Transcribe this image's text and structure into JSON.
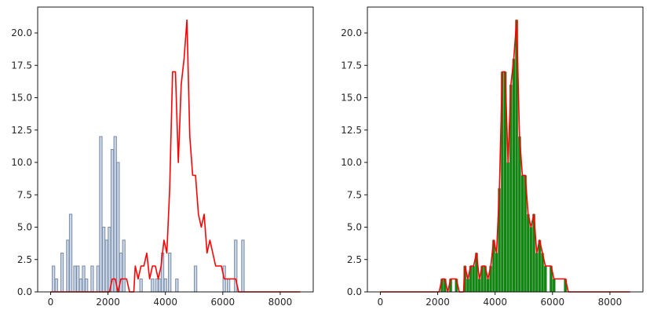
{
  "chart_data": [
    {
      "type": "bar",
      "panel": "left",
      "title": "",
      "xlabel": "",
      "ylabel": "",
      "xlim": [
        -450,
        9150
      ],
      "ylim": [
        0,
        22
      ],
      "grid": false,
      "xticks": [
        0,
        2000,
        4000,
        6000,
        8000
      ],
      "yticks": [
        0,
        2.5,
        5,
        7.5,
        10,
        12.5,
        15,
        17.5,
        20
      ],
      "xtick_labels": [
        "0",
        "2000",
        "4000",
        "6000",
        "8000"
      ],
      "ytick_labels": [
        "0.0",
        "2.5",
        "5.0",
        "7.5",
        "10.0",
        "12.5",
        "15.0",
        "17.5",
        "20.0"
      ],
      "bar_style": {
        "fill": "#c9d6e8",
        "edge": "#7b8ca4"
      },
      "line_style": {
        "color": "#ff0000"
      },
      "bars": [
        {
          "x": 100,
          "value": 2
        },
        {
          "x": 200,
          "value": 1
        },
        {
          "x": 400,
          "value": 3
        },
        {
          "x": 600,
          "value": 4
        },
        {
          "x": 700,
          "value": 6
        },
        {
          "x": 850,
          "value": 2
        },
        {
          "x": 950,
          "value": 2
        },
        {
          "x": 1050,
          "value": 1
        },
        {
          "x": 1150,
          "value": 2
        },
        {
          "x": 1250,
          "value": 1
        },
        {
          "x": 1450,
          "value": 2
        },
        {
          "x": 1650,
          "value": 2
        },
        {
          "x": 1750,
          "value": 12
        },
        {
          "x": 1850,
          "value": 5
        },
        {
          "x": 1950,
          "value": 4
        },
        {
          "x": 2050,
          "value": 5
        },
        {
          "x": 2150,
          "value": 11
        },
        {
          "x": 2250,
          "value": 12
        },
        {
          "x": 2350,
          "value": 10
        },
        {
          "x": 2450,
          "value": 3
        },
        {
          "x": 2550,
          "value": 4
        },
        {
          "x": 3150,
          "value": 1
        },
        {
          "x": 3550,
          "value": 1
        },
        {
          "x": 3700,
          "value": 1
        },
        {
          "x": 3800,
          "value": 1
        },
        {
          "x": 3900,
          "value": 3
        },
        {
          "x": 4000,
          "value": 1
        },
        {
          "x": 4150,
          "value": 3
        },
        {
          "x": 4400,
          "value": 1
        },
        {
          "x": 5050,
          "value": 2
        },
        {
          "x": 6050,
          "value": 2
        },
        {
          "x": 6200,
          "value": 1
        },
        {
          "x": 6450,
          "value": 4
        },
        {
          "x": 6700,
          "value": 4
        }
      ],
      "line": [
        {
          "x": 0,
          "y": 0
        },
        {
          "x": 2050,
          "y": 0
        },
        {
          "x": 2150,
          "y": 1
        },
        {
          "x": 2250,
          "y": 1
        },
        {
          "x": 2350,
          "y": 0
        },
        {
          "x": 2450,
          "y": 1
        },
        {
          "x": 2650,
          "y": 1
        },
        {
          "x": 2750,
          "y": 0
        },
        {
          "x": 2900,
          "y": 0
        },
        {
          "x": 2950,
          "y": 2
        },
        {
          "x": 3050,
          "y": 1
        },
        {
          "x": 3150,
          "y": 2
        },
        {
          "x": 3250,
          "y": 2
        },
        {
          "x": 3350,
          "y": 3
        },
        {
          "x": 3450,
          "y": 1
        },
        {
          "x": 3550,
          "y": 2
        },
        {
          "x": 3650,
          "y": 2
        },
        {
          "x": 3750,
          "y": 1
        },
        {
          "x": 3850,
          "y": 2
        },
        {
          "x": 3950,
          "y": 4
        },
        {
          "x": 4050,
          "y": 3
        },
        {
          "x": 4150,
          "y": 8
        },
        {
          "x": 4250,
          "y": 17
        },
        {
          "x": 4350,
          "y": 17
        },
        {
          "x": 4450,
          "y": 10
        },
        {
          "x": 4550,
          "y": 16
        },
        {
          "x": 4650,
          "y": 18
        },
        {
          "x": 4750,
          "y": 21
        },
        {
          "x": 4850,
          "y": 12
        },
        {
          "x": 4950,
          "y": 9
        },
        {
          "x": 5050,
          "y": 9
        },
        {
          "x": 5150,
          "y": 6
        },
        {
          "x": 5250,
          "y": 5
        },
        {
          "x": 5350,
          "y": 6
        },
        {
          "x": 5450,
          "y": 3
        },
        {
          "x": 5550,
          "y": 4
        },
        {
          "x": 5650,
          "y": 3
        },
        {
          "x": 5750,
          "y": 2
        },
        {
          "x": 5950,
          "y": 2
        },
        {
          "x": 6050,
          "y": 1
        },
        {
          "x": 6450,
          "y": 1
        },
        {
          "x": 6550,
          "y": 0
        },
        {
          "x": 8700,
          "y": 0
        }
      ]
    },
    {
      "type": "bar",
      "panel": "right",
      "title": "",
      "xlabel": "",
      "ylabel": "",
      "xlim": [
        -450,
        9150
      ],
      "ylim": [
        0,
        22
      ],
      "grid": false,
      "xticks": [
        0,
        2000,
        4000,
        6000,
        8000
      ],
      "yticks": [
        0,
        2.5,
        5,
        7.5,
        10,
        12.5,
        15,
        17.5,
        20
      ],
      "xtick_labels": [
        "0",
        "2000",
        "4000",
        "6000",
        "8000"
      ],
      "ytick_labels": [
        "0.0",
        "2.5",
        "5.0",
        "7.5",
        "10.0",
        "12.5",
        "15.0",
        "17.5",
        "20.0"
      ],
      "bar_style": {
        "fill": "#0a8a0a",
        "edge": "#a8a8a8",
        "bar_width": 100
      },
      "line_style": {
        "color": "#ff0000"
      },
      "bars_from_line": true,
      "line": [
        {
          "x": 0,
          "y": 0
        },
        {
          "x": 2050,
          "y": 0
        },
        {
          "x": 2150,
          "y": 1
        },
        {
          "x": 2250,
          "y": 1
        },
        {
          "x": 2350,
          "y": 0
        },
        {
          "x": 2450,
          "y": 1
        },
        {
          "x": 2650,
          "y": 1
        },
        {
          "x": 2750,
          "y": 0
        },
        {
          "x": 2900,
          "y": 0
        },
        {
          "x": 2950,
          "y": 2
        },
        {
          "x": 3050,
          "y": 1
        },
        {
          "x": 3150,
          "y": 2
        },
        {
          "x": 3250,
          "y": 2
        },
        {
          "x": 3350,
          "y": 3
        },
        {
          "x": 3450,
          "y": 1
        },
        {
          "x": 3550,
          "y": 2
        },
        {
          "x": 3650,
          "y": 2
        },
        {
          "x": 3750,
          "y": 1
        },
        {
          "x": 3850,
          "y": 2
        },
        {
          "x": 3950,
          "y": 4
        },
        {
          "x": 4050,
          "y": 3
        },
        {
          "x": 4150,
          "y": 8
        },
        {
          "x": 4250,
          "y": 17
        },
        {
          "x": 4350,
          "y": 17
        },
        {
          "x": 4450,
          "y": 10
        },
        {
          "x": 4550,
          "y": 16
        },
        {
          "x": 4650,
          "y": 18
        },
        {
          "x": 4750,
          "y": 21
        },
        {
          "x": 4850,
          "y": 12
        },
        {
          "x": 4950,
          "y": 9
        },
        {
          "x": 5050,
          "y": 9
        },
        {
          "x": 5150,
          "y": 6
        },
        {
          "x": 5250,
          "y": 5
        },
        {
          "x": 5350,
          "y": 6
        },
        {
          "x": 5450,
          "y": 3
        },
        {
          "x": 5550,
          "y": 4
        },
        {
          "x": 5650,
          "y": 3
        },
        {
          "x": 5750,
          "y": 2
        },
        {
          "x": 5950,
          "y": 2
        },
        {
          "x": 6050,
          "y": 1
        },
        {
          "x": 6450,
          "y": 1
        },
        {
          "x": 6550,
          "y": 0
        },
        {
          "x": 8700,
          "y": 0
        }
      ]
    }
  ]
}
